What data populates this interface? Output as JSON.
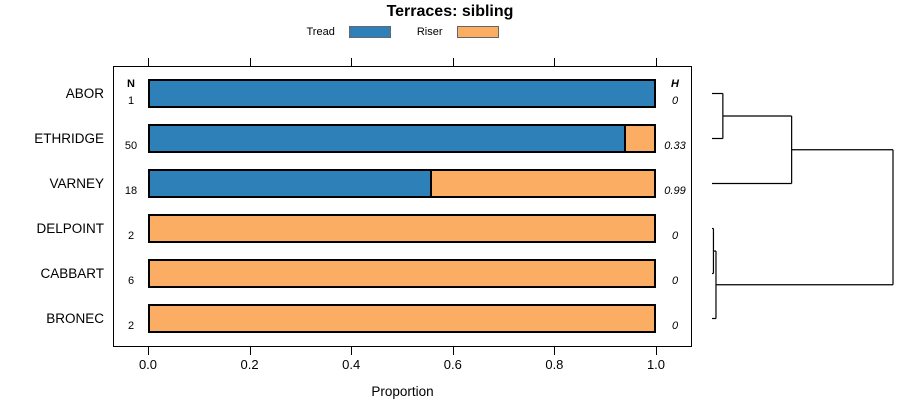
{
  "chart_data": {
    "type": "bar",
    "orientation": "horizontal-stacked",
    "title": "Terraces: sibling",
    "xlabel": "Proportion",
    "xlim": [
      0,
      1
    ],
    "grid": false,
    "legend_position": "top-center",
    "x_tick_labels": [
      "0.0",
      "0.2",
      "0.4",
      "0.6",
      "0.8",
      "1.0"
    ],
    "x_tick_values": [
      0,
      0.2,
      0.4,
      0.6,
      0.8,
      1.0
    ],
    "legend": [
      {
        "label": "Tread",
        "color": "#2E80B9"
      },
      {
        "label": "Riser",
        "color": "#FBAD63"
      }
    ],
    "columns": {
      "n_header": "N",
      "h_header": "H"
    },
    "categories": [
      "ABOR",
      "ETHRIDGE",
      "VARNEY",
      "DELPOINT",
      "CABBART",
      "BRONEC"
    ],
    "rows": [
      {
        "label": "ABOR",
        "n": "1",
        "h": "0",
        "tread": 1.0,
        "riser": 0.0
      },
      {
        "label": "ETHRIDGE",
        "n": "50",
        "h": "0.33",
        "tread": 0.94,
        "riser": 0.06
      },
      {
        "label": "VARNEY",
        "n": "18",
        "h": "0.99",
        "tread": 0.556,
        "riser": 0.444
      },
      {
        "label": "DELPOINT",
        "n": "2",
        "h": "0",
        "tread": 0.0,
        "riser": 1.0
      },
      {
        "label": "CABBART",
        "n": "6",
        "h": "0",
        "tread": 0.0,
        "riser": 1.0
      },
      {
        "label": "BRONEC",
        "n": "2",
        "h": "0",
        "tread": 0.0,
        "riser": 1.0
      }
    ],
    "dendrogram": {
      "leaves": [
        "ABOR",
        "ETHRIDGE",
        "VARNEY",
        "DELPOINT",
        "CABBART",
        "BRONEC"
      ],
      "merges": [
        {
          "id": "M0",
          "a": "L0",
          "b": "L1",
          "height": 0.06
        },
        {
          "id": "M1",
          "a": "M0",
          "b": "L2",
          "height": 0.44
        },
        {
          "id": "M2",
          "a": "L3",
          "b": "L4",
          "height": 0.008
        },
        {
          "id": "M3",
          "a": "M2",
          "b": "L5",
          "height": 0.022
        },
        {
          "id": "M4",
          "a": "M1",
          "b": "M3",
          "height": 1.0
        }
      ],
      "line_color": "#000000"
    }
  }
}
